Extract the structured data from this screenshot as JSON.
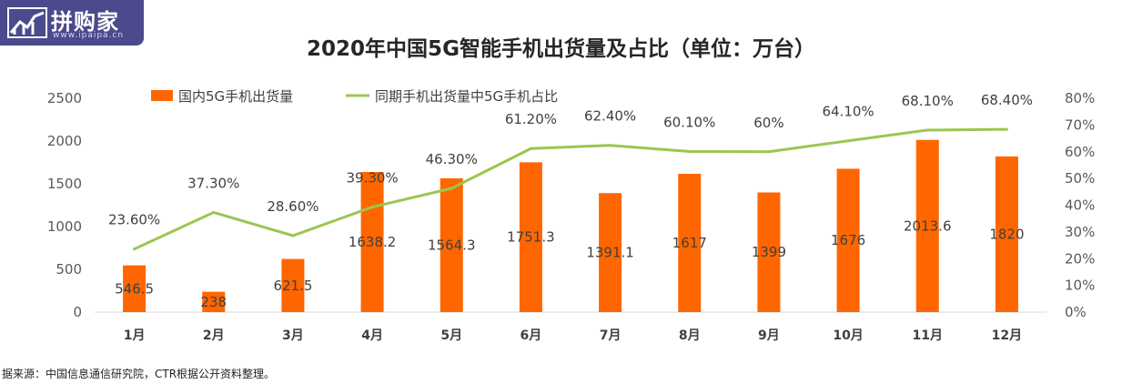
{
  "brand": {
    "name": "拼购家",
    "url": "www.ipaipa.cn",
    "color": "#4a4a8c"
  },
  "source_note": "据来源：中国信息通信研究院，CTR根据公开资料整理。",
  "chart_data": {
    "type": "bar",
    "title": "2020年中国5G智能手机出货量及占比（单位：万台）",
    "categories": [
      "1月",
      "2月",
      "3月",
      "4月",
      "5月",
      "6月",
      "7月",
      "8月",
      "9月",
      "10月",
      "11月",
      "12月"
    ],
    "series": [
      {
        "name": "国内5G手机出货量",
        "type": "bar",
        "axis": "left",
        "color": "#ff6600",
        "values": [
          546.5,
          238,
          621.5,
          1638.2,
          1564.3,
          1751.3,
          1391.1,
          1617,
          1399,
          1676,
          2013.6,
          1820
        ],
        "labels": [
          "546.5",
          "238",
          "621.5",
          "1638.2",
          "1564.3",
          "1751.3",
          "1391.1",
          "1617",
          "1399",
          "1676",
          "2013.6",
          "1820"
        ]
      },
      {
        "name": "同期手机出货量中5G手机占比",
        "type": "line",
        "axis": "right",
        "color": "#9bc650",
        "values": [
          23.6,
          37.3,
          28.6,
          39.3,
          46.3,
          61.2,
          62.4,
          60.1,
          60,
          64.1,
          68.1,
          68.4
        ],
        "labels": [
          "23.60%",
          "37.30%",
          "28.60%",
          "39.30%",
          "46.30%",
          "61.20%",
          "62.40%",
          "60.10%",
          "60%",
          "64.10%",
          "68.10%",
          "68.40%"
        ]
      }
    ],
    "y_left": {
      "min": 0,
      "max": 2500,
      "ticks": [
        "0",
        "500",
        "1000",
        "1500",
        "2000",
        "2500"
      ]
    },
    "y_right": {
      "min": 0,
      "max": 80,
      "ticks": [
        "0%",
        "10%",
        "20%",
        "30%",
        "40%",
        "50%",
        "60%",
        "70%",
        "80%"
      ]
    },
    "legend": "top",
    "grid": false
  }
}
